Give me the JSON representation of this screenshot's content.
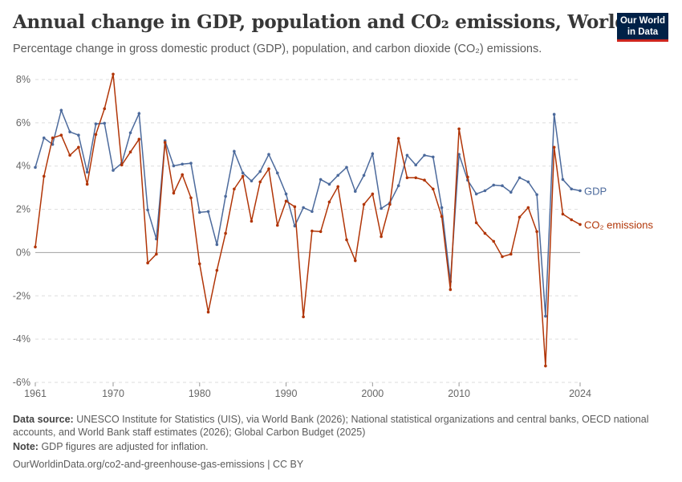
{
  "header": {
    "title": "Annual change in GDP, population and CO₂ emissions, World",
    "subtitle": "Percentage change in gross domestic product (GDP), population, and carbon dioxide (CO₂) emissions.",
    "logo": "Our World in Data"
  },
  "footer": {
    "source_label": "Data source:",
    "source": "UNESCO Institute for Statistics (UIS), via World Bank (2026); National statistical organizations and central banks, OECD national accounts, and World Bank staff estimates (2026); Global Carbon Budget (2025)",
    "note_label": "Note:",
    "note": "GDP figures are adjusted for inflation.",
    "url": "OurWorldinData.org/co2-and-greenhouse-gas-emissions | CC BY"
  },
  "chart_data": {
    "type": "line",
    "xlim": [
      1961,
      2024
    ],
    "ylim": [
      -6,
      8
    ],
    "x_ticks": [
      1961,
      1970,
      1980,
      1990,
      2000,
      2010,
      2024
    ],
    "y_ticks": [
      -6,
      -4,
      -2,
      0,
      2,
      4,
      6,
      8
    ],
    "y_tick_labels": [
      "-6%",
      "-4%",
      "-2%",
      "0%",
      "2%",
      "4%",
      "6%",
      "8%"
    ],
    "grid": "horizontal dashed",
    "legend": "right end labels",
    "x_start": 1961,
    "series": [
      {
        "name": "GDP",
        "color": "#4c6a9c",
        "values": [
          3.94,
          5.3,
          5.0,
          6.58,
          5.58,
          5.43,
          3.72,
          5.95,
          5.98,
          3.8,
          4.13,
          5.54,
          6.43,
          1.97,
          0.63,
          5.17,
          4.01,
          4.09,
          4.13,
          1.86,
          1.9,
          0.37,
          2.6,
          4.68,
          3.68,
          3.31,
          3.75,
          4.54,
          3.68,
          2.71,
          1.23,
          2.08,
          1.9,
          3.38,
          3.16,
          3.57,
          3.94,
          2.83,
          3.57,
          4.57,
          2.04,
          2.3,
          3.09,
          4.5,
          4.05,
          4.5,
          4.42,
          2.08,
          -1.34,
          4.54,
          3.35,
          2.71,
          2.86,
          3.12,
          3.09,
          2.79,
          3.46,
          3.27,
          2.68,
          -2.94,
          6.39,
          3.38,
          2.94,
          2.86
        ]
      },
      {
        "name": "CO₂ emissions",
        "color": "#b13507",
        "values": [
          0.26,
          3.53,
          5.3,
          5.43,
          4.5,
          4.87,
          3.16,
          5.46,
          6.65,
          8.25,
          4.05,
          4.65,
          5.24,
          -0.48,
          -0.07,
          5.09,
          2.75,
          3.6,
          2.53,
          -0.52,
          -2.75,
          -0.82,
          0.89,
          2.94,
          3.53,
          1.45,
          3.27,
          3.87,
          1.26,
          2.38,
          2.12,
          -2.97,
          1.0,
          0.97,
          2.34,
          3.05,
          0.59,
          -0.37,
          2.23,
          2.71,
          0.74,
          2.23,
          5.28,
          3.46,
          3.46,
          3.35,
          2.94,
          1.67,
          -1.71,
          5.72,
          3.49,
          1.38,
          0.89,
          0.52,
          -0.19,
          -0.07,
          1.64,
          2.08,
          0.97,
          -5.24,
          4.87,
          1.78,
          1.52,
          1.3
        ]
      }
    ]
  }
}
